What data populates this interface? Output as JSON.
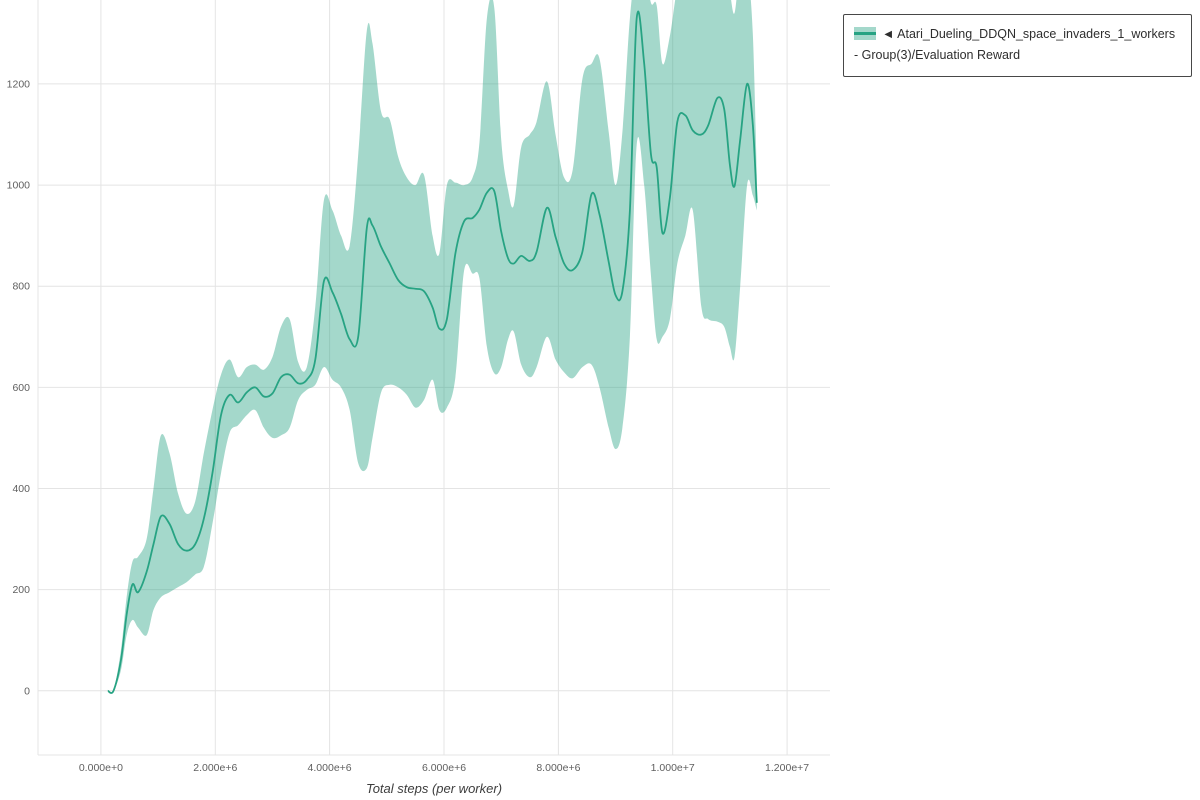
{
  "chart_data": {
    "type": "line",
    "title": "",
    "xlabel": "Total steps (per worker)",
    "ylabel": "",
    "grid": true,
    "legend_position": "top-right",
    "line_color": "#27a383",
    "band_solid": "#a4d8cb",
    "band_opacity": 0.42,
    "grid_color": "#e4e4e4",
    "tick_color": "#5f5f5f",
    "xlim": [
      -1100000,
      12750000
    ],
    "ylim": [
      -127,
      1366
    ],
    "yticks": [
      0,
      200,
      400,
      600,
      800,
      1000,
      1200
    ],
    "xticks": [
      {
        "v": 0,
        "label": "0.000e+0"
      },
      {
        "v": 2000000,
        "label": "2.000e+6"
      },
      {
        "v": 4000000,
        "label": "4.000e+6"
      },
      {
        "v": 6000000,
        "label": "6.000e+6"
      },
      {
        "v": 8000000,
        "label": "8.000e+6"
      },
      {
        "v": 10000000,
        "label": "1.000e+7"
      },
      {
        "v": 12000000,
        "label": "1.200e+7"
      }
    ],
    "legend": [
      {
        "marker": "◄",
        "label": "Atari_Dueling_DDQN_space_invaders_1_workers - Group(3)/Evaluation Reward"
      }
    ],
    "series": [
      {
        "name": "Evaluation Reward",
        "x": [
          120000,
          220000,
          350000,
          450000,
          550000,
          650000,
          800000,
          920000,
          1050000,
          1200000,
          1350000,
          1500000,
          1650000,
          1800000,
          1950000,
          2100000,
          2250000,
          2400000,
          2550000,
          2700000,
          2850000,
          3000000,
          3150000,
          3300000,
          3450000,
          3600000,
          3750000,
          3900000,
          4050000,
          4200000,
          4350000,
          4500000,
          4650000,
          4750000,
          4900000,
          5050000,
          5200000,
          5350000,
          5500000,
          5650000,
          5800000,
          5920000,
          6050000,
          6200000,
          6350000,
          6500000,
          6620000,
          6750000,
          6880000,
          7000000,
          7120000,
          7220000,
          7350000,
          7500000,
          7620000,
          7800000,
          7950000,
          8100000,
          8250000,
          8420000,
          8580000,
          8720000,
          8880000,
          9000000,
          9120000,
          9250000,
          9370000,
          9500000,
          9620000,
          9720000,
          9820000,
          9950000,
          10080000,
          10220000,
          10350000,
          10500000,
          10620000,
          10780000,
          10900000,
          11000000,
          11080000,
          11180000,
          11300000,
          11400000,
          11470000
        ],
        "mean": [
          0,
          0,
          60,
          150,
          210,
          195,
          235,
          290,
          345,
          330,
          290,
          277,
          290,
          340,
          430,
          545,
          585,
          570,
          590,
          600,
          582,
          588,
          620,
          625,
          608,
          615,
          655,
          810,
          788,
          745,
          695,
          700,
          915,
          920,
          878,
          845,
          812,
          798,
          795,
          790,
          758,
          716,
          735,
          865,
          928,
          935,
          952,
          985,
          988,
          908,
          855,
          845,
          860,
          850,
          868,
          955,
          898,
          845,
          832,
          868,
          982,
          942,
          848,
          782,
          790,
          950,
          1330,
          1240,
          1060,
          1035,
          905,
          975,
          1125,
          1138,
          1108,
          1100,
          1118,
          1172,
          1150,
          1040,
          998,
          1090,
          1200,
          1120,
          965
        ],
        "lower": [
          0,
          0,
          40,
          110,
          140,
          125,
          110,
          160,
          185,
          195,
          205,
          215,
          230,
          245,
          330,
          430,
          510,
          525,
          545,
          555,
          520,
          500,
          505,
          520,
          575,
          595,
          605,
          640,
          615,
          600,
          555,
          450,
          440,
          500,
          590,
          605,
          600,
          585,
          560,
          575,
          615,
          555,
          560,
          620,
          830,
          825,
          815,
          680,
          628,
          640,
          695,
          710,
          645,
          620,
          640,
          700,
          655,
          630,
          618,
          640,
          645,
          600,
          520,
          478,
          520,
          700,
          1080,
          1000,
          820,
          695,
          700,
          735,
          845,
          900,
          950,
          760,
          735,
          730,
          720,
          680,
          660,
          800,
          1000,
          980,
          950
        ],
        "upper": [
          0,
          0,
          80,
          185,
          255,
          265,
          300,
          400,
          505,
          470,
          390,
          350,
          375,
          470,
          555,
          625,
          655,
          620,
          640,
          645,
          635,
          660,
          720,
          735,
          650,
          640,
          760,
          970,
          950,
          900,
          880,
          1060,
          1305,
          1280,
          1145,
          1130,
          1055,
          1015,
          1000,
          1020,
          900,
          865,
          1000,
          1005,
          1000,
          1015,
          1085,
          1330,
          1350,
          1090,
          990,
          960,
          1075,
          1100,
          1125,
          1205,
          1100,
          1015,
          1030,
          1210,
          1240,
          1250,
          1105,
          1000,
          1105,
          1330,
          1430,
          1430,
          1360,
          1355,
          1240,
          1295,
          1390,
          1430,
          1430,
          1430,
          1430,
          1430,
          1430,
          1380,
          1340,
          1430,
          1430,
          1300,
          1020
        ]
      }
    ]
  }
}
